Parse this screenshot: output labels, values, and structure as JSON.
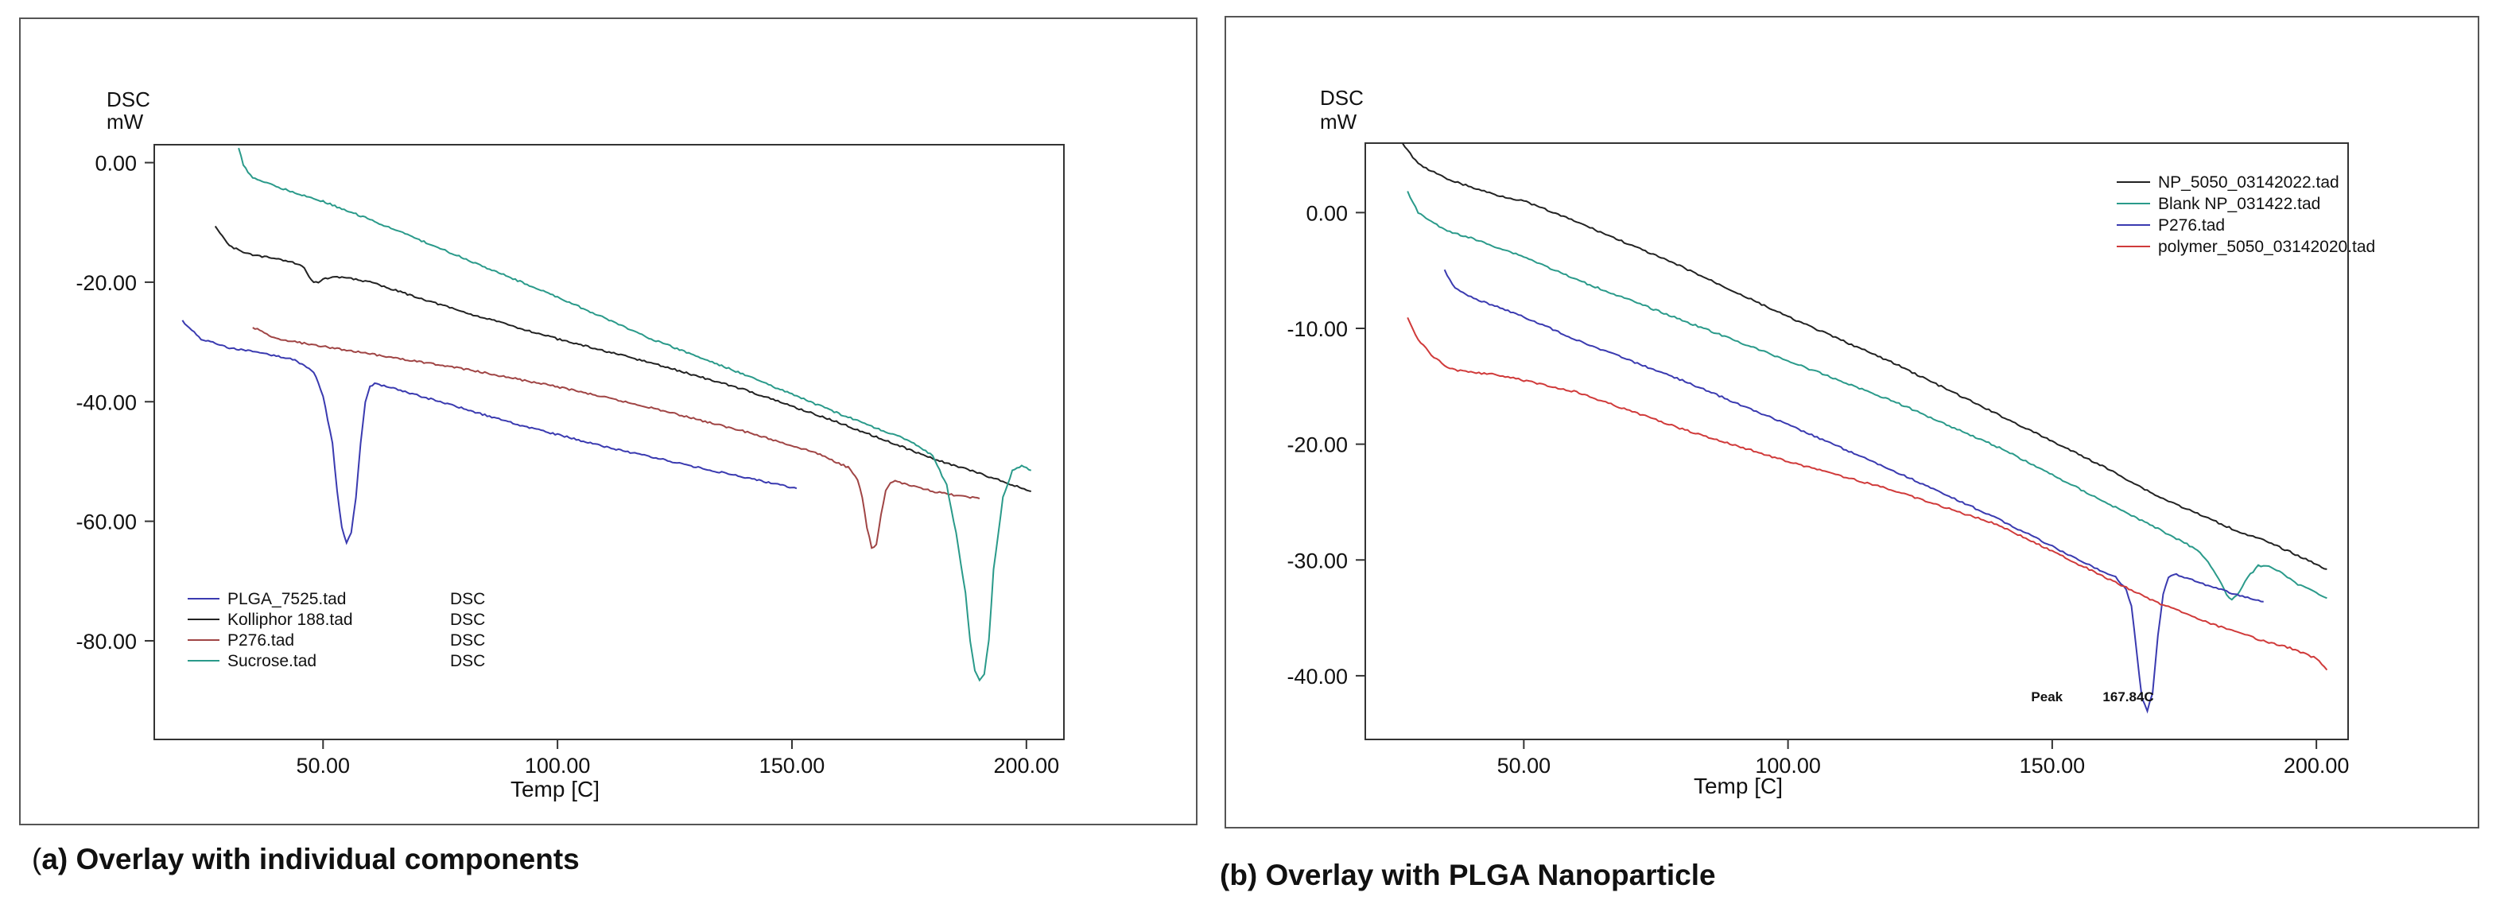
{
  "captions": {
    "a_open": "(",
    "a_letter": "a) ",
    "a_text": "Overlay with individual components",
    "b_full": "(b) Overlay with PLGA Nanoparticle"
  },
  "chart_data": [
    {
      "id": "a",
      "type": "line",
      "title": "",
      "ylabel_line1": "DSC",
      "ylabel_line2": "mW",
      "xlabel": "Temp  [C]",
      "xlim": [
        14,
        208
      ],
      "ylim": [
        -96.5,
        3
      ],
      "xticks": [
        "50.00",
        "100.00",
        "150.00",
        "200.00"
      ],
      "xtick_values": [
        50,
        100,
        150,
        200
      ],
      "yticks": [
        "0.00",
        "-20.00",
        "-40.00",
        "-60.00",
        "-80.00"
      ],
      "ytick_values": [
        0,
        -20,
        -40,
        -60,
        -80
      ],
      "legend_position": "bottom-left",
      "series": [
        {
          "name": "PLGA_7525.tad",
          "tag": "DSC",
          "color": "#3a3ab0",
          "x": [
            20,
            24,
            30,
            38,
            44,
            48,
            50,
            52,
            53,
            54,
            55,
            56,
            57,
            58,
            59,
            60,
            61,
            62,
            65,
            75,
            90,
            110,
            130,
            145,
            151
          ],
          "y": [
            -26.5,
            -29.5,
            -31,
            -32,
            -33,
            -35,
            -39,
            -47,
            -55,
            -61,
            -63.5,
            -62,
            -56,
            -47,
            -40,
            -37.5,
            -37,
            -37.2,
            -37.8,
            -40,
            -43.5,
            -47.5,
            -51,
            -53.5,
            -54.5
          ]
        },
        {
          "name": "Kolliphor 188.tad",
          "tag": "DSC",
          "color": "#222222",
          "x": [
            27,
            30,
            35,
            40,
            44,
            46,
            47,
            48,
            49,
            50,
            52,
            55,
            60,
            80,
            100,
            120,
            140,
            160,
            170,
            180,
            190,
            201
          ],
          "y": [
            -10.5,
            -14,
            -15.5,
            -16,
            -16.8,
            -17.5,
            -19,
            -20,
            -20,
            -19.5,
            -19.2,
            -19.2,
            -20,
            -25,
            -29.5,
            -33.5,
            -38,
            -43.5,
            -46.5,
            -49.5,
            -52,
            -55
          ]
        },
        {
          "name": "P276.tad",
          "tag": "DSC",
          "color": "#a04545",
          "x": [
            35,
            40,
            60,
            80,
            100,
            120,
            140,
            155,
            162,
            164,
            165,
            166,
            167,
            168,
            169,
            170,
            171,
            172,
            175,
            180,
            186,
            190
          ],
          "y": [
            -27.5,
            -29.5,
            -32,
            -34.5,
            -37.5,
            -41,
            -45,
            -48.5,
            -51,
            -53,
            -56,
            -61,
            -64.5,
            -64,
            -59,
            -55,
            -53.5,
            -53.3,
            -54,
            -55,
            -55.8,
            -56.2
          ]
        },
        {
          "name": "Sucrose.tad",
          "tag": "DSC",
          "color": "#2a9a8a",
          "x": [
            32,
            33,
            35,
            40,
            50,
            60,
            80,
            100,
            120,
            140,
            160,
            175,
            180,
            183,
            185,
            187,
            188,
            189,
            190,
            191,
            192,
            193,
            195,
            197,
            199,
            200,
            201
          ],
          "y": [
            2.5,
            -0.5,
            -2.5,
            -4,
            -6.5,
            -9.5,
            -16,
            -22.5,
            -29.5,
            -35.5,
            -42,
            -46.5,
            -49,
            -54,
            -62,
            -72,
            -80,
            -85,
            -86.5,
            -85.5,
            -80,
            -68,
            -56,
            -51.5,
            -50.8,
            -51,
            -51.5
          ]
        }
      ]
    },
    {
      "id": "b",
      "type": "line",
      "title": "",
      "ylabel_line1": "DSC",
      "ylabel_line2": "mW",
      "xlabel": "Temp  [C]",
      "xlim": [
        20,
        206
      ],
      "ylim": [
        -45.5,
        6
      ],
      "xticks": [
        "50.00",
        "100.00",
        "150.00",
        "200.00"
      ],
      "xtick_values": [
        50,
        100,
        150,
        200
      ],
      "yticks": [
        "0.00",
        "-10.00",
        "-20.00",
        "-30.00",
        "-40.00"
      ],
      "ytick_values": [
        0,
        -10,
        -20,
        -30,
        -40
      ],
      "legend_position": "top-right",
      "annotation": {
        "label": "Peak",
        "value": "167.84C",
        "x": 167.84,
        "y": -42.2
      },
      "series": [
        {
          "name": "NP_5050_03142022.tad",
          "color": "#222222",
          "x": [
            27,
            30,
            35,
            40,
            45,
            50,
            60,
            80,
            100,
            120,
            140,
            160,
            170,
            180,
            185,
            190,
            195,
            202
          ],
          "y": [
            6,
            4.2,
            3,
            2.2,
            1.5,
            1,
            -0.8,
            -4.7,
            -9,
            -13,
            -17.5,
            -22,
            -24.5,
            -26.5,
            -27.5,
            -28.3,
            -29.3,
            -30.8
          ]
        },
        {
          "name": "Blank NP_031422.tad",
          "color": "#2a9a8a",
          "x": [
            28,
            30,
            35,
            40,
            50,
            60,
            80,
            100,
            120,
            140,
            160,
            170,
            175,
            178,
            180,
            182,
            183,
            184,
            185,
            187,
            189,
            191,
            193,
            196,
            200,
            202
          ],
          "y": [
            1.8,
            0,
            -1.5,
            -2.2,
            -3.8,
            -5.8,
            -9.3,
            -12.8,
            -16.3,
            -20.3,
            -25,
            -27.3,
            -28.5,
            -29.3,
            -30.5,
            -32,
            -33,
            -33.5,
            -33,
            -31.5,
            -30.5,
            -30.5,
            -31,
            -32,
            -32.8,
            -33.3
          ]
        },
        {
          "name": "P276.tad",
          "color": "#3a3ab0",
          "x": [
            35,
            37,
            40,
            50,
            60,
            80,
            100,
            120,
            140,
            155,
            162,
            164,
            165,
            166,
            167,
            168,
            169,
            170,
            171,
            172,
            173,
            175,
            180,
            185,
            190
          ],
          "y": [
            -5,
            -6.5,
            -7.3,
            -9,
            -11,
            -14.5,
            -18.3,
            -22.3,
            -26.5,
            -30,
            -31.5,
            -32.5,
            -34,
            -38,
            -42,
            -43,
            -41.5,
            -36.5,
            -33,
            -31.5,
            -31.2,
            -31.5,
            -32.3,
            -33,
            -33.6
          ]
        },
        {
          "name": "polymer_5050_03142020.tad",
          "color": "#d03a3a",
          "x": [
            28,
            30,
            33,
            36,
            40,
            45,
            50,
            60,
            80,
            100,
            120,
            140,
            160,
            170,
            180,
            190,
            195,
            200,
            202
          ],
          "y": [
            -9,
            -11,
            -12.5,
            -13.5,
            -13.8,
            -14,
            -14.5,
            -15.5,
            -18.7,
            -21.5,
            -24,
            -27,
            -31.5,
            -33.7,
            -35.5,
            -37,
            -37.6,
            -38.5,
            -39.5
          ]
        }
      ]
    }
  ]
}
